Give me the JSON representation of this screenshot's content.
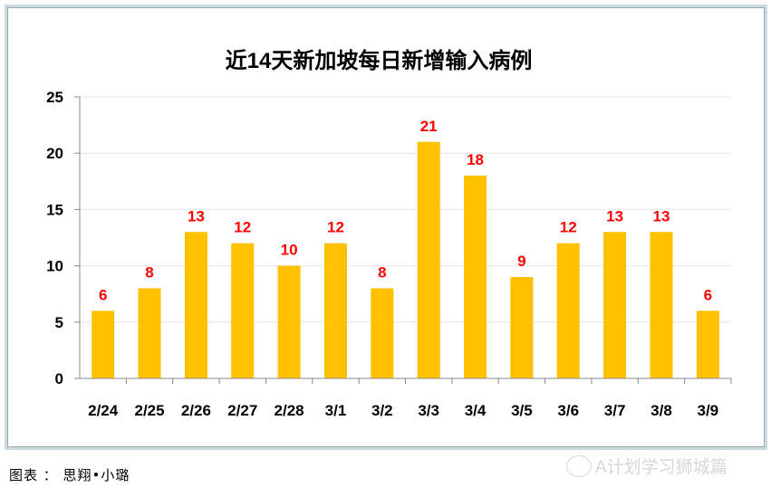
{
  "chart_data": {
    "type": "bar",
    "title": "近14天新加坡每日新增输入病例",
    "categories": [
      "2/24",
      "2/25",
      "2/26",
      "2/27",
      "2/28",
      "3/1",
      "3/2",
      "3/3",
      "3/4",
      "3/5",
      "3/6",
      "3/7",
      "3/8",
      "3/9"
    ],
    "values": [
      6,
      8,
      13,
      12,
      10,
      12,
      8,
      21,
      18,
      9,
      12,
      13,
      13,
      6
    ],
    "ylim": [
      0,
      25
    ],
    "yticks": [
      0,
      5,
      10,
      15,
      20,
      25
    ],
    "xlabel": "",
    "ylabel": "",
    "grid": true,
    "bar_color": "#ffc000",
    "label_color": "#ff0000"
  },
  "caption": "图表 ： 思翔•小璐",
  "watermark": "A计划学习狮城篇"
}
